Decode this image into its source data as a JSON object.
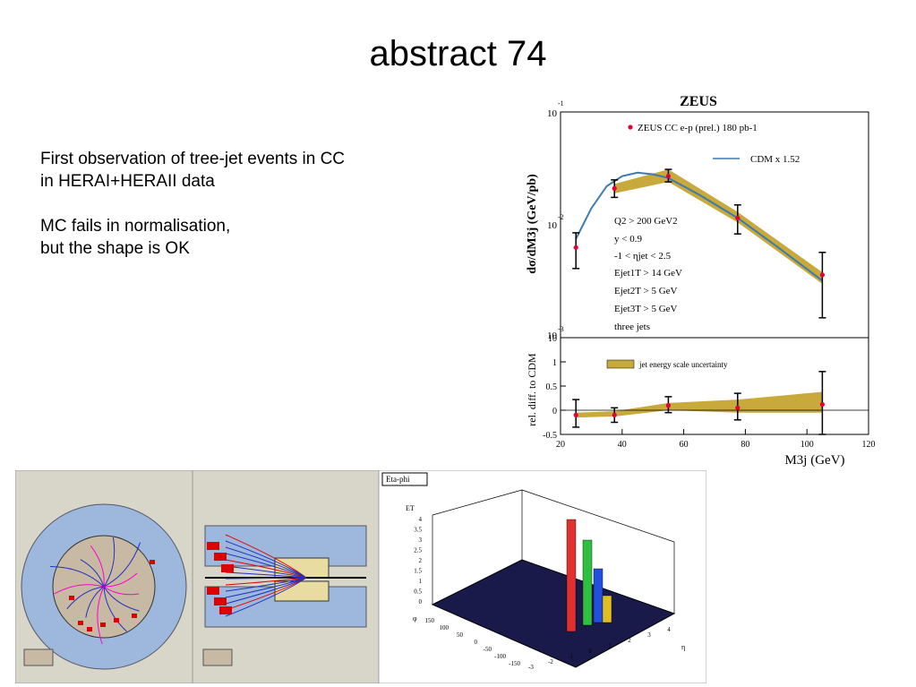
{
  "slide": {
    "title": "abstract 74",
    "notes": [
      "First observation of tree-jet events in CC",
      "in HERAI+HERAII data",
      "MC fails in normalisation,",
      "but the shape is  OK"
    ]
  },
  "chart_data": [
    {
      "type": "line",
      "title": "ZEUS",
      "ylabel": "dσ/dM3j (GeV/pb)",
      "xlabel": "M3j (GeV)",
      "yscale": "log",
      "ylim": [
        0.001,
        0.1
      ],
      "xlim": [
        20,
        120
      ],
      "y_ticks": [
        "10",
        "10",
        "10"
      ],
      "y_tick_exps": [
        "-1",
        "-2",
        "-3"
      ],
      "x_ticks": [
        "20",
        "40",
        "60",
        "80",
        "100",
        "120"
      ],
      "legend": {
        "data_label": "ZEUS CC e-p (prel.) 180 pb-1",
        "model_label": "CDM x 1.52"
      },
      "cuts": [
        "Q2 > 200 GeV2",
        "y < 0.9",
        "-1 < ηjet < 2.5",
        "Ejet1T > 14 GeV",
        "Ejet2T > 5 GeV",
        "Ejet3T > 5 GeV",
        "three jets"
      ],
      "series": [
        {
          "name": "ZEUS CC e-p (prel.) 180 pb-1",
          "x": [
            25,
            37.5,
            55,
            77.5,
            105
          ],
          "y": [
            0.0063,
            0.021,
            0.027,
            0.0115,
            0.0036
          ],
          "y_err_low": [
            0.0041,
            0.0175,
            0.024,
            0.0083,
            0.0015
          ],
          "y_err_high": [
            0.0085,
            0.025,
            0.031,
            0.015,
            0.0057
          ]
        },
        {
          "name": "CDM x 1.52",
          "x": [
            25,
            30,
            35,
            40,
            45,
            50,
            55,
            65,
            77.5,
            90,
            105
          ],
          "y": [
            0.0075,
            0.014,
            0.022,
            0.027,
            0.029,
            0.028,
            0.026,
            0.0185,
            0.0115,
            0.0065,
            0.0032
          ]
        }
      ],
      "uncertainty_band": {
        "name": "jet energy scale uncertainty",
        "x": [
          37.5,
          55,
          77.5,
          105
        ],
        "low": [
          0.019,
          0.024,
          0.0105,
          0.003
        ],
        "high": [
          0.023,
          0.031,
          0.013,
          0.0038
        ]
      }
    },
    {
      "type": "scatter",
      "ylabel": "rel. diff. to CDM",
      "xlabel": "M3j (GeV)",
      "ylim": [
        -0.5,
        1.5
      ],
      "xlim": [
        20,
        120
      ],
      "y_ticks": [
        "-0.5",
        "0",
        "0.5",
        "1"
      ],
      "top_tick_label": "10",
      "x_ticks": [
        "20",
        "40",
        "60",
        "80",
        "100",
        "120"
      ],
      "legend": "jet energy scale uncertainty",
      "series": [
        {
          "name": "ZEUS CC e-p (prel.) 180 pb-1",
          "x": [
            25,
            37.5,
            55,
            77.5,
            105
          ],
          "y": [
            -0.1,
            -0.1,
            0.1,
            0.05,
            0.12
          ],
          "y_err_low": [
            -0.35,
            -0.25,
            -0.05,
            -0.2,
            -0.5
          ],
          "y_err_high": [
            0.22,
            0.05,
            0.28,
            0.35,
            0.8
          ]
        }
      ],
      "uncertainty_band": {
        "name": "jet energy scale uncertainty",
        "x": [
          25,
          37.5,
          55,
          77.5,
          105
        ],
        "low": [
          -0.15,
          -0.13,
          0.0,
          -0.05,
          -0.05
        ],
        "high": [
          -0.05,
          -0.02,
          0.15,
          0.22,
          0.38
        ]
      }
    }
  ],
  "event_display": {
    "lego_title": "Eta-phi",
    "lego_z_ticks": [
      "4",
      "3.5",
      "3",
      "2.5",
      "2",
      "1.5",
      "1",
      "0.5",
      "0"
    ],
    "lego_phi_ticks": [
      "150",
      "100",
      "50",
      "0",
      "-50",
      "-100",
      "-150"
    ],
    "lego_eta_ticks": [
      "-3",
      "-2",
      "-1",
      "0",
      "1",
      "2",
      "3",
      "4"
    ],
    "lego_z_label": "ET",
    "lego_phi_label": "φ",
    "lego_eta_label": "η",
    "colors": {
      "calorimeter": "#9db8dc",
      "inner": "#c8b9a4",
      "tracks": "#2030c0",
      "hits": "#e00000",
      "background": "#d8d6c8"
    }
  }
}
